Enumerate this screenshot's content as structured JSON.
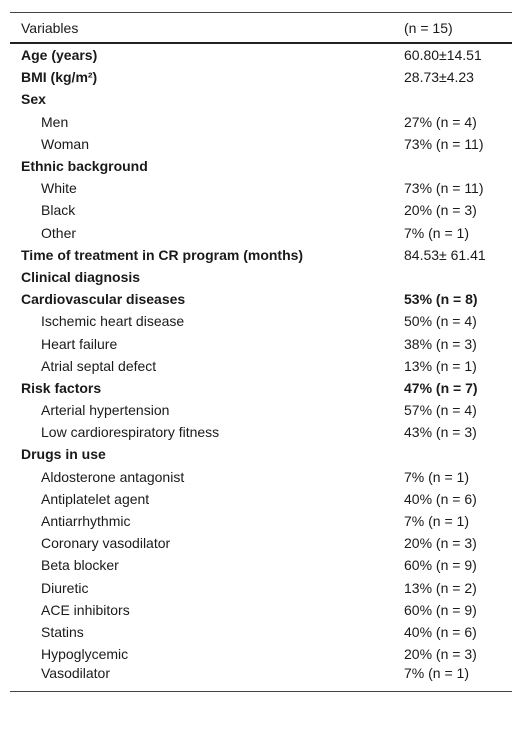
{
  "table": {
    "header": [
      "Variables",
      "(n = 15)"
    ],
    "rows": [
      {
        "label": "Age (years)",
        "value": "60.80±14.51",
        "style": "bold"
      },
      {
        "label": "BMI (kg/m²)",
        "value": "28.73±4.23",
        "style": "bold"
      },
      {
        "label": "Sex",
        "value": null,
        "style": "bold"
      },
      {
        "label": "Men",
        "value": "27% (n = 4)",
        "style": "indent"
      },
      {
        "label": "Woman",
        "value": "73% (n = 11)",
        "style": "indent"
      },
      {
        "label": "Ethnic background",
        "value": null,
        "style": "bold"
      },
      {
        "label": "White",
        "value": "73% (n = 11)",
        "style": "indent"
      },
      {
        "label": "Black",
        "value": "20% (n = 3)",
        "style": "indent"
      },
      {
        "label": "Other",
        "value": "7% (n = 1)",
        "style": "indent"
      },
      {
        "label": "Time of treatment in CR program (months)",
        "value": "84.53± 61.41",
        "style": "bold"
      },
      {
        "label": "Clinical diagnosis",
        "value": null,
        "style": "bold"
      },
      {
        "label": "Cardiovascular diseases",
        "value": "53% (n = 8)",
        "style": "bold-all"
      },
      {
        "label": "Ischemic heart disease",
        "value": "50% (n = 4)",
        "style": "indent"
      },
      {
        "label": "Heart failure",
        "value": "38% (n = 3)",
        "style": "indent"
      },
      {
        "label": "Atrial septal defect",
        "value": "13% (n = 1)",
        "style": "indent"
      },
      {
        "label": "Risk factors",
        "value": "47% (n = 7)",
        "style": "bold-all"
      },
      {
        "label": "Arterial hypertension",
        "value": "57% (n = 4)",
        "style": "indent"
      },
      {
        "label": "Low cardiorespiratory fitness",
        "value": "43% (n = 3)",
        "style": "indent"
      },
      {
        "label": "Drugs in use",
        "value": null,
        "style": "bold"
      },
      {
        "label": "Aldosterone antagonist",
        "value": "7% (n = 1)",
        "style": "indent"
      },
      {
        "label": "Antiplatelet agent",
        "value": "40% (n = 6)",
        "style": "indent"
      },
      {
        "label": "Antiarrhythmic",
        "value": "7% (n = 1)",
        "style": "indent"
      },
      {
        "label": "Coronary vasodilator",
        "value": "20% (n = 3)",
        "style": "indent"
      },
      {
        "label": "Beta blocker",
        "value": "60% (n = 9)",
        "style": "indent"
      },
      {
        "label": "Diuretic",
        "value": "13% (n = 2)",
        "style": "indent"
      },
      {
        "label": "ACE inhibitors",
        "value": "60% (n = 9)",
        "style": "indent"
      },
      {
        "label": "Statins",
        "value": "40% (n = 6)",
        "style": "indent"
      },
      {
        "label": "Hypoglycemic",
        "value": "20% (n = 3)",
        "style": "indent"
      },
      {
        "label": "Vasodilator",
        "value": "7% (n = 1)",
        "style": "indent"
      }
    ]
  }
}
